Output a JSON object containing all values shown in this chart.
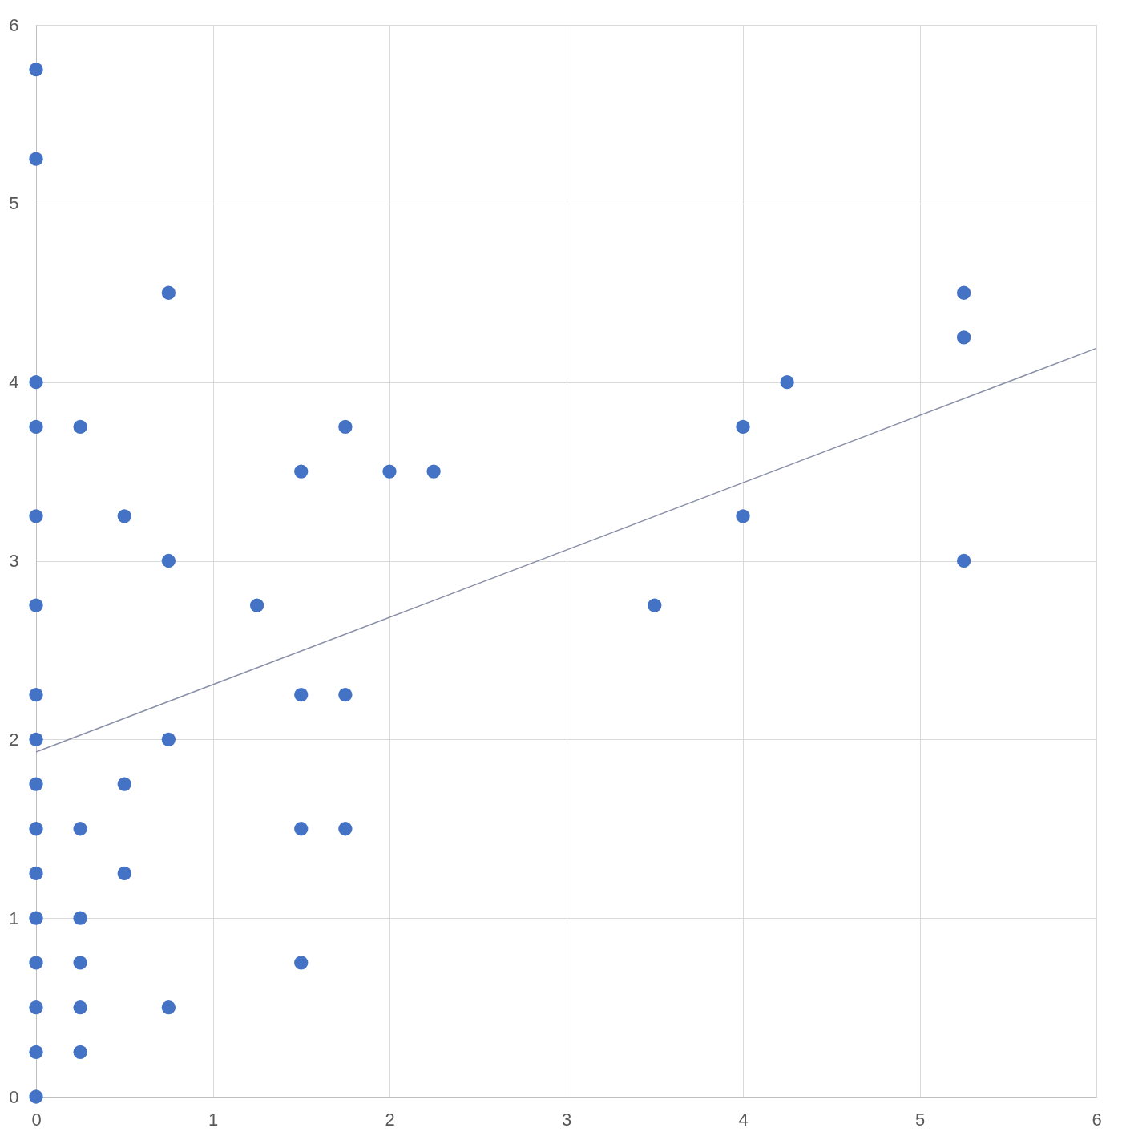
{
  "chart_data": {
    "type": "scatter",
    "xlim": [
      0,
      6
    ],
    "ylim": [
      0,
      6
    ],
    "xticks": [
      0,
      1,
      2,
      3,
      4,
      5,
      6
    ],
    "yticks": [
      0,
      1,
      2,
      3,
      4,
      5,
      6
    ],
    "grid": true,
    "marker": "circle",
    "series": [
      {
        "color": "#4472c4",
        "x": [
          0,
          0,
          0,
          0,
          0,
          0,
          0,
          0,
          0,
          0,
          0,
          0,
          0,
          0,
          0,
          0,
          0.25,
          0.25,
          0.25,
          0.25,
          0.25,
          0.25,
          0.5,
          0.5,
          0.5,
          0.75,
          0.75,
          0.75,
          0.75,
          1.25,
          1.5,
          1.5,
          1.5,
          1.5,
          1.75,
          1.75,
          1.75,
          2,
          2.25,
          3.5,
          4,
          4,
          4.25,
          5.25,
          5.25,
          5.25
        ],
        "values": [
          5.75,
          5.25,
          4,
          3.75,
          3.25,
          2.75,
          2.25,
          2,
          1.75,
          1.5,
          1.25,
          1,
          0.75,
          0.5,
          0.25,
          0,
          3.75,
          1.5,
          1,
          0.75,
          0.5,
          0.25,
          3.25,
          1.75,
          1.25,
          4.5,
          3,
          2,
          0.5,
          2.75,
          3.5,
          2.25,
          1.5,
          0.75,
          3.75,
          2.25,
          1.5,
          3.5,
          3.5,
          2.75,
          3.75,
          3.25,
          4,
          4.5,
          4.25,
          3
        ]
      },
      {
        "type": "line",
        "marker": "none",
        "color": "#8a8fa8",
        "x": [
          0,
          6
        ],
        "values": [
          1.93,
          4.19
        ]
      }
    ]
  }
}
